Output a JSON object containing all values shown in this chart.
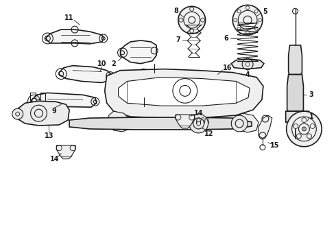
{
  "background_color": "#ffffff",
  "line_color": "#1a1a1a",
  "fig_width": 4.9,
  "fig_height": 3.6,
  "dpi": 100,
  "label_fontsize": 6.5
}
